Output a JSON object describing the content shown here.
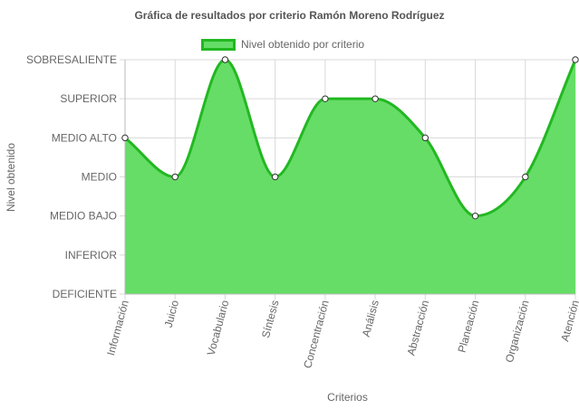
{
  "chart_data": {
    "type": "area",
    "title": "Gráfica de resultados por criterio Ramón Moreno Rodríguez",
    "xlabel": "Criterios",
    "ylabel": "Nivel obtenido",
    "categories": [
      "Información",
      "Juicio",
      "Vocabulario",
      "Síntesis",
      "Concentración",
      "Análisis",
      "Abstracción",
      "Planeación",
      "Organización",
      "Atención"
    ],
    "y_levels": [
      "DEFICIENTE",
      "INFERIOR",
      "MEDIO BAJO",
      "MEDIO",
      "MEDIO ALTO",
      "SUPERIOR",
      "SOBRESALIENTE"
    ],
    "ylim": [
      0,
      6
    ],
    "series": [
      {
        "name": "Nivel obtenido por criterio",
        "values": [
          4,
          3,
          6,
          3,
          5,
          5,
          4,
          2,
          3,
          6
        ],
        "value_labels": [
          "MEDIO ALTO",
          "MEDIO",
          "SOBRESALIENTE",
          "MEDIO",
          "SUPERIOR",
          "SUPERIOR",
          "MEDIO ALTO",
          "MEDIO BAJO",
          "MEDIO",
          "SOBRESALIENTE"
        ]
      }
    ],
    "grid": true,
    "legend_position": "top-center",
    "colors": {
      "fill": "#66dd66",
      "line": "#22b822",
      "point_fill": "#ffffff",
      "point_stroke": "#333333",
      "grid": "#d9d9d9"
    }
  }
}
